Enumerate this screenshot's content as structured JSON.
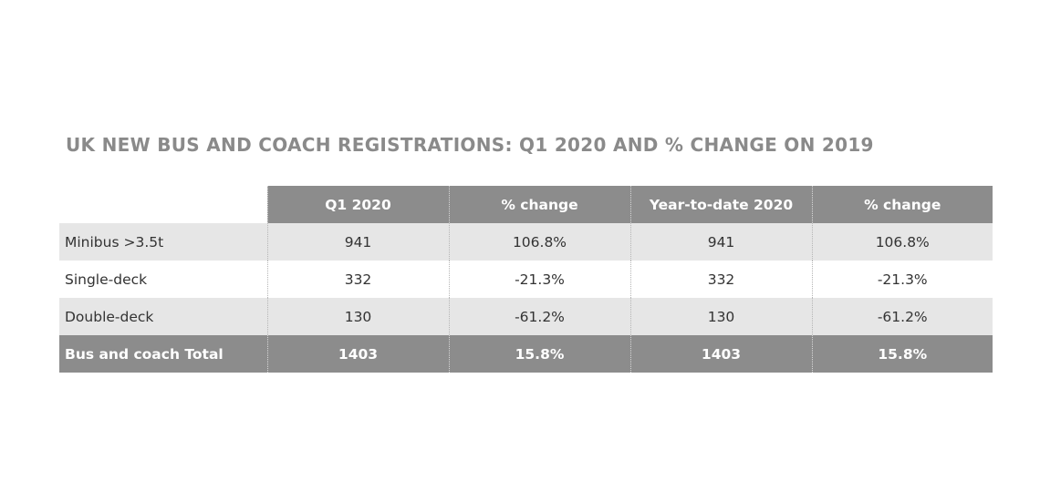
{
  "chart_data": {
    "type": "table",
    "title": "UK NEW BUS AND COACH REGISTRATIONS: Q1 2020 AND % CHANGE ON 2019",
    "columns": [
      "",
      "Q1 2020",
      "% change",
      "Year-to-date 2020",
      "% change"
    ],
    "rows": [
      [
        "Minibus >3.5t",
        "941",
        "106.8%",
        "941",
        "106.8%"
      ],
      [
        "Single-deck",
        "332",
        "-21.3%",
        "332",
        "-21.3%"
      ],
      [
        "Double-deck",
        "130",
        "-61.2%",
        "130",
        "-61.2%"
      ]
    ],
    "total": [
      "Bus and coach Total",
      "1403",
      "15.8%",
      "1403",
      "15.8%"
    ],
    "colors": {
      "title": "#8a8a8a",
      "header_bg": "#8c8c8c",
      "header_text": "#ffffff",
      "shaded_row": "#e6e6e6",
      "body_text": "#333333"
    }
  }
}
